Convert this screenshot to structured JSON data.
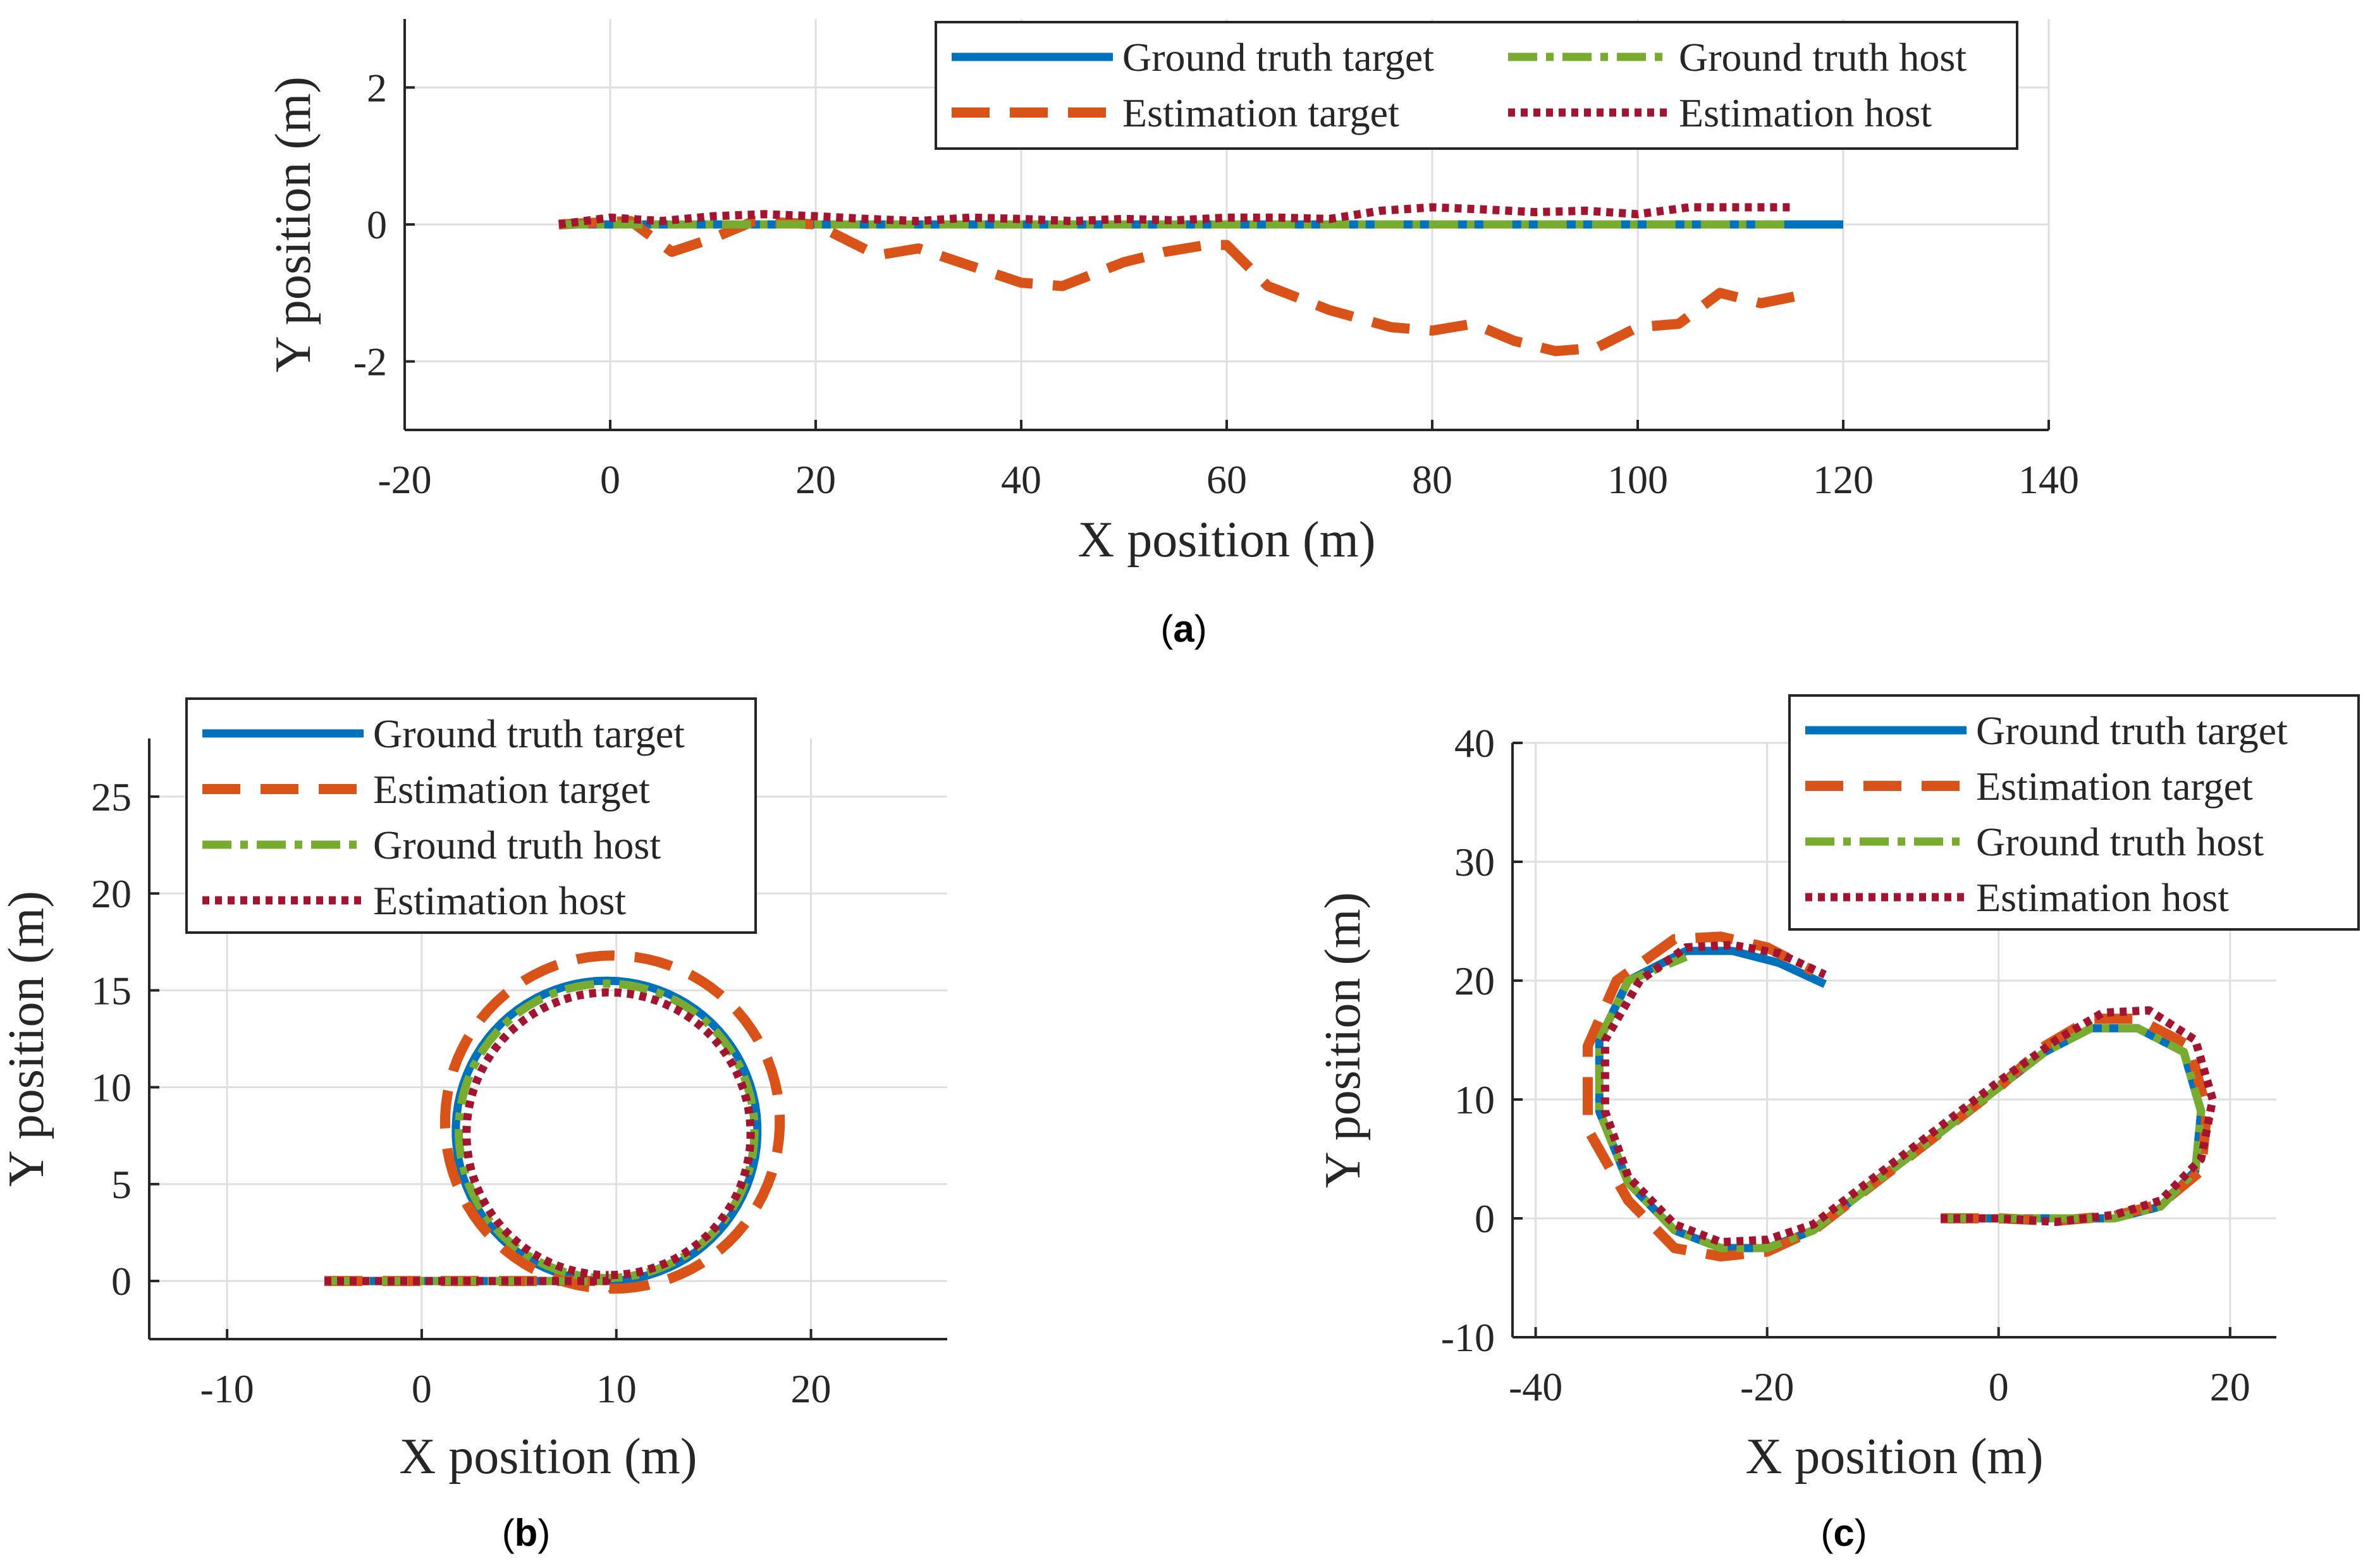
{
  "figure": {
    "captions": [
      {
        "paren_open": "(",
        "letter": "a",
        "paren_close": ")"
      },
      {
        "paren_open": "(",
        "letter": "b",
        "paren_close": ")"
      },
      {
        "paren_open": "(",
        "letter": "c",
        "paren_close": ")"
      }
    ]
  },
  "colors": {
    "ground_truth_target": "#0072BD",
    "estimation_target": "#D95319",
    "ground_truth_host": "#77AC30",
    "estimation_host": "#A2142F",
    "grid": "#DFDFDF",
    "axis": "#262626"
  },
  "chart_data": [
    {
      "type": "line",
      "panel": "a",
      "title": "",
      "xlabel": "X position (m)",
      "ylabel": "Y position (m)",
      "xlim": [
        -20,
        140
      ],
      "ylim": [
        -3,
        3
      ],
      "xticks": [
        -20,
        0,
        20,
        40,
        60,
        80,
        100,
        120,
        140
      ],
      "xtick_labels": [
        "-20",
        "0",
        "20",
        "40",
        "60",
        "80",
        "100",
        "120",
        "140"
      ],
      "yticks": [
        -2,
        0,
        2
      ],
      "ytick_labels": [
        "-2",
        "0",
        "2"
      ],
      "grid": true,
      "legend_placement": "top-right",
      "legend_columns": 2,
      "series": [
        {
          "name": "Ground truth target",
          "style": "solid",
          "x": [
            -5,
            120
          ],
          "y": [
            0,
            0
          ]
        },
        {
          "name": "Estimation target",
          "style": "dashed",
          "x": [
            -5,
            2,
            6,
            10,
            14,
            20,
            26,
            30,
            34,
            40,
            44,
            50,
            54,
            58,
            60,
            64,
            70,
            76,
            80,
            84,
            88,
            92,
            96,
            100,
            104,
            108,
            112,
            117
          ],
          "y": [
            0,
            0.05,
            -0.4,
            -0.2,
            0.05,
            0,
            -0.45,
            -0.35,
            -0.55,
            -0.85,
            -0.9,
            -0.55,
            -0.4,
            -0.3,
            -0.3,
            -0.9,
            -1.25,
            -1.5,
            -1.55,
            -1.45,
            -1.7,
            -1.85,
            -1.8,
            -1.5,
            -1.45,
            -1.0,
            -1.15,
            -1.0
          ]
        },
        {
          "name": "Ground truth host",
          "style": "dashdot",
          "x": [
            -5,
            115
          ],
          "y": [
            0,
            0
          ]
        },
        {
          "name": "Estimation host",
          "style": "dotted",
          "x": [
            -5,
            0,
            5,
            10,
            15,
            20,
            25,
            30,
            35,
            40,
            45,
            50,
            55,
            60,
            65,
            70,
            75,
            80,
            85,
            90,
            95,
            100,
            105,
            110,
            115
          ],
          "y": [
            0,
            0.1,
            0.05,
            0.12,
            0.15,
            0.12,
            0.08,
            0.05,
            0.1,
            0.08,
            0.05,
            0.08,
            0.06,
            0.1,
            0.1,
            0.08,
            0.2,
            0.25,
            0.22,
            0.18,
            0.2,
            0.15,
            0.25,
            0.25,
            0.25
          ]
        }
      ]
    },
    {
      "type": "line",
      "panel": "b",
      "title": "",
      "xlabel": "X position (m)",
      "ylabel": "Y position (m)",
      "xlim": [
        -14,
        27
      ],
      "ylim": [
        -3,
        28
      ],
      "xticks": [
        -10,
        0,
        10,
        20
      ],
      "xtick_labels": [
        "-10",
        "0",
        "10",
        "20"
      ],
      "yticks": [
        0,
        5,
        10,
        15,
        20,
        25
      ],
      "ytick_labels": [
        "0",
        "5",
        "10",
        "15",
        "20",
        "25"
      ],
      "grid": true,
      "legend_placement": "top-left",
      "legend_columns": 1,
      "series": [
        {
          "name": "Ground truth target",
          "style": "solid",
          "shape": "line_then_loop",
          "line_from_x": -5,
          "line_to_x": 9.5,
          "cx": 9.5,
          "cy": 7.75,
          "r": 7.75
        },
        {
          "name": "Estimation target",
          "style": "dashed",
          "shape": "line_then_loop",
          "line_from_x": -5,
          "line_to_x": 9.5,
          "cx": 9.8,
          "cy": 8.2,
          "r": 8.6
        },
        {
          "name": "Ground truth host",
          "style": "dashdot",
          "shape": "line_then_loop",
          "line_from_x": -5,
          "line_to_x": 9.5,
          "cx": 9.5,
          "cy": 7.75,
          "r": 7.6
        },
        {
          "name": "Estimation host",
          "style": "dotted",
          "shape": "line_then_loop",
          "line_from_x": -5,
          "line_to_x": 9.5,
          "cx": 9.6,
          "cy": 7.6,
          "r": 7.3
        }
      ]
    },
    {
      "type": "line",
      "panel": "c",
      "title": "",
      "xlabel": "X position (m)",
      "ylabel": "Y position (m)",
      "xlim": [
        -42,
        24
      ],
      "ylim": [
        -10,
        40
      ],
      "xticks": [
        -40,
        -20,
        0,
        20
      ],
      "xtick_labels": [
        "-40",
        "-20",
        "0",
        "20"
      ],
      "yticks": [
        -10,
        0,
        10,
        20,
        30,
        40
      ],
      "ytick_labels": [
        "-10",
        "0",
        "10",
        "20",
        "30",
        "40"
      ],
      "grid": true,
      "legend_placement": "top-right",
      "legend_columns": 1,
      "series": [
        {
          "name": "Ground truth target",
          "style": "solid",
          "x": [
            -5,
            0,
            5,
            10,
            14,
            17,
            17.5,
            16,
            12,
            8,
            4,
            0,
            -4,
            -8,
            -12,
            -16,
            -20,
            -24,
            -28,
            -32,
            -34.5,
            -34.5,
            -32,
            -27,
            -23,
            -19,
            -15
          ],
          "y": [
            0,
            0,
            0,
            0,
            1,
            4,
            9,
            14,
            16,
            16,
            14,
            11,
            8,
            5,
            2,
            -1,
            -2.5,
            -2.5,
            -1,
            3,
            9,
            15,
            20,
            22.5,
            22.5,
            21.5,
            19.7
          ]
        },
        {
          "name": "Estimation target",
          "style": "dashed",
          "x": [
            -5,
            0,
            5,
            10,
            14,
            17.5,
            18,
            16.5,
            12,
            8,
            4,
            0,
            -4,
            -8,
            -12,
            -16,
            -20,
            -24,
            -28,
            -32,
            -35.5,
            -35.5,
            -33,
            -28,
            -24,
            -20,
            -16
          ],
          "y": [
            0,
            0,
            -0.2,
            0.2,
            1.2,
            4,
            9,
            14.5,
            16.8,
            16.8,
            14.5,
            11,
            8,
            5,
            2,
            -1,
            -2.8,
            -3.2,
            -2.5,
            1.5,
            7.5,
            14.5,
            20,
            23.5,
            23.7,
            22.8,
            20.8
          ]
        },
        {
          "name": "Ground truth host",
          "style": "dashdot",
          "x": [
            -5,
            0,
            5,
            10,
            14,
            17,
            17.5,
            16,
            12,
            8,
            4,
            0,
            -4,
            -8,
            -12,
            -16,
            -20,
            -24,
            -28,
            -32,
            -34.5,
            -34.5,
            -32,
            -27
          ],
          "y": [
            0,
            0,
            0,
            0,
            1,
            4,
            9,
            14,
            16,
            16,
            14,
            11,
            8,
            5,
            2,
            -1,
            -2.5,
            -2.5,
            -1,
            3,
            9,
            15,
            20,
            22
          ]
        },
        {
          "name": "Estimation host",
          "style": "dotted",
          "x": [
            -5,
            0,
            5,
            10,
            14,
            17.5,
            18.5,
            17,
            13,
            9,
            5,
            0,
            -4,
            -8,
            -12,
            -16,
            -20,
            -24,
            -28,
            -32,
            -34,
            -34,
            -31,
            -27,
            -23,
            -19,
            -15
          ],
          "y": [
            0,
            0,
            -0.3,
            0.3,
            1.5,
            5,
            10,
            15,
            17.5,
            17.3,
            15,
            11.5,
            8.5,
            5.5,
            2.5,
            -0.5,
            -1.8,
            -2,
            -0.5,
            3.5,
            9,
            15,
            20,
            22.8,
            23,
            22.3,
            20.5
          ]
        }
      ]
    }
  ]
}
